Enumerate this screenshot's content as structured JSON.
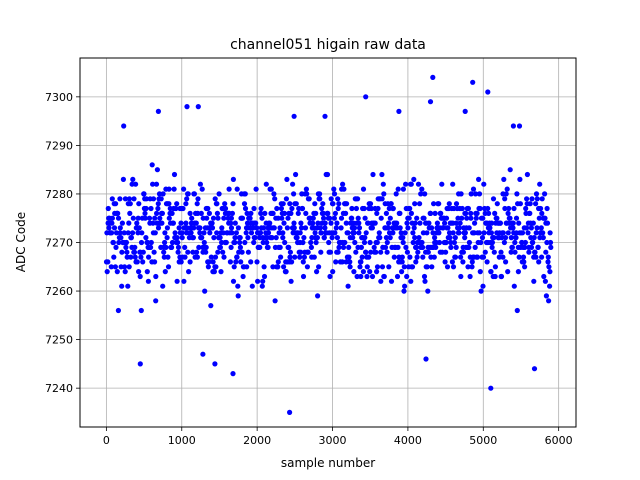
{
  "chart_data": {
    "type": "scatter",
    "title": "channel051 higain raw data",
    "xlabel": "sample number",
    "ylabel": "ADC Code",
    "xlim": [
      -350,
      6230
    ],
    "ylim": [
      7232,
      7308
    ],
    "xticks": [
      0,
      1000,
      2000,
      3000,
      4000,
      5000,
      6000
    ],
    "yticks": [
      7240,
      7250,
      7260,
      7270,
      7280,
      7290,
      7300
    ],
    "grid": true,
    "marker_color": "#0000ff",
    "series": [
      {
        "n_samples": 5900,
        "typical_range": [
          7255,
          7289
        ],
        "center": 7272,
        "outliers": [
          {
            "x": 2430,
            "y": 7235
          },
          {
            "x": 5100,
            "y": 7240
          },
          {
            "x": 1680,
            "y": 7243
          },
          {
            "x": 5680,
            "y": 7244
          },
          {
            "x": 450,
            "y": 7245
          },
          {
            "x": 1440,
            "y": 7245
          },
          {
            "x": 4240,
            "y": 7246
          },
          {
            "x": 1280,
            "y": 7247
          },
          {
            "x": 3440,
            "y": 7300
          },
          {
            "x": 4330,
            "y": 7304
          },
          {
            "x": 4860,
            "y": 7303
          },
          {
            "x": 5060,
            "y": 7301
          },
          {
            "x": 4300,
            "y": 7299
          },
          {
            "x": 1070,
            "y": 7298
          },
          {
            "x": 1220,
            "y": 7298
          },
          {
            "x": 690,
            "y": 7297
          },
          {
            "x": 3880,
            "y": 7297
          },
          {
            "x": 4760,
            "y": 7297
          },
          {
            "x": 2490,
            "y": 7296
          },
          {
            "x": 2900,
            "y": 7296
          },
          {
            "x": 230,
            "y": 7294
          },
          {
            "x": 5400,
            "y": 7294
          },
          {
            "x": 5480,
            "y": 7294
          }
        ]
      }
    ]
  }
}
